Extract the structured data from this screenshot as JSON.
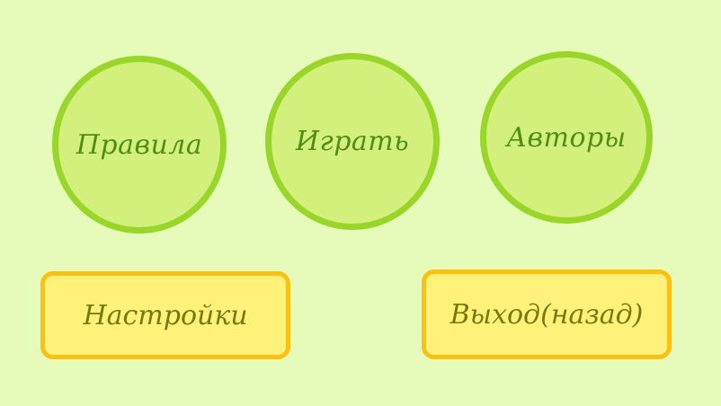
{
  "menu": {
    "rules_label": "Правила",
    "play_label": "Играть",
    "authors_label": "Авторы",
    "settings_label": "Настройки",
    "exit_label": "Выход(назад)"
  },
  "colors": {
    "background": "#e6fbb9",
    "circle_fill": "#d4f07c",
    "circle_border": "#9ad62a",
    "circle_text": "#4f8e12",
    "rect_fill": "#fff179",
    "rect_border": "#fcc010",
    "rect_text": "#747a0e"
  }
}
